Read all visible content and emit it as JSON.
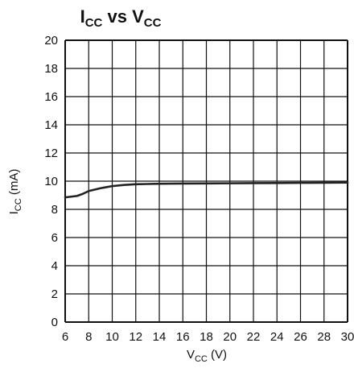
{
  "chart_data": {
    "type": "line",
    "title": {
      "main1": "I",
      "sub1": "CC",
      "mid": " vs V",
      "sub2": "CC"
    },
    "xlabel": {
      "main": "V",
      "sub": "CC",
      "rest": " (V)"
    },
    "ylabel": {
      "main": "I",
      "sub": "CC",
      "rest": " (mA)"
    },
    "xlim": [
      6,
      30
    ],
    "ylim": [
      0,
      20
    ],
    "x_ticks": [
      "6",
      "8",
      "10",
      "12",
      "14",
      "16",
      "18",
      "20",
      "22",
      "24",
      "26",
      "28",
      "30"
    ],
    "y_ticks": [
      "0",
      "2",
      "4",
      "6",
      "8",
      "10",
      "12",
      "14",
      "16",
      "18",
      "20"
    ],
    "grid": true,
    "line_color": "#222222",
    "series": [
      {
        "points": [
          [
            6.0,
            8.85
          ],
          [
            6.5,
            8.9
          ],
          [
            7.0,
            8.95
          ],
          [
            7.5,
            9.1
          ],
          [
            8.0,
            9.3
          ],
          [
            9.0,
            9.5
          ],
          [
            10.0,
            9.65
          ],
          [
            11.0,
            9.73
          ],
          [
            12.0,
            9.78
          ],
          [
            13.0,
            9.8
          ],
          [
            14.0,
            9.82
          ],
          [
            16.0,
            9.83
          ],
          [
            18.0,
            9.84
          ],
          [
            20.0,
            9.85
          ],
          [
            22.0,
            9.86
          ],
          [
            24.0,
            9.87
          ],
          [
            26.0,
            9.88
          ],
          [
            28.0,
            9.89
          ],
          [
            30.0,
            9.9
          ]
        ]
      }
    ]
  }
}
